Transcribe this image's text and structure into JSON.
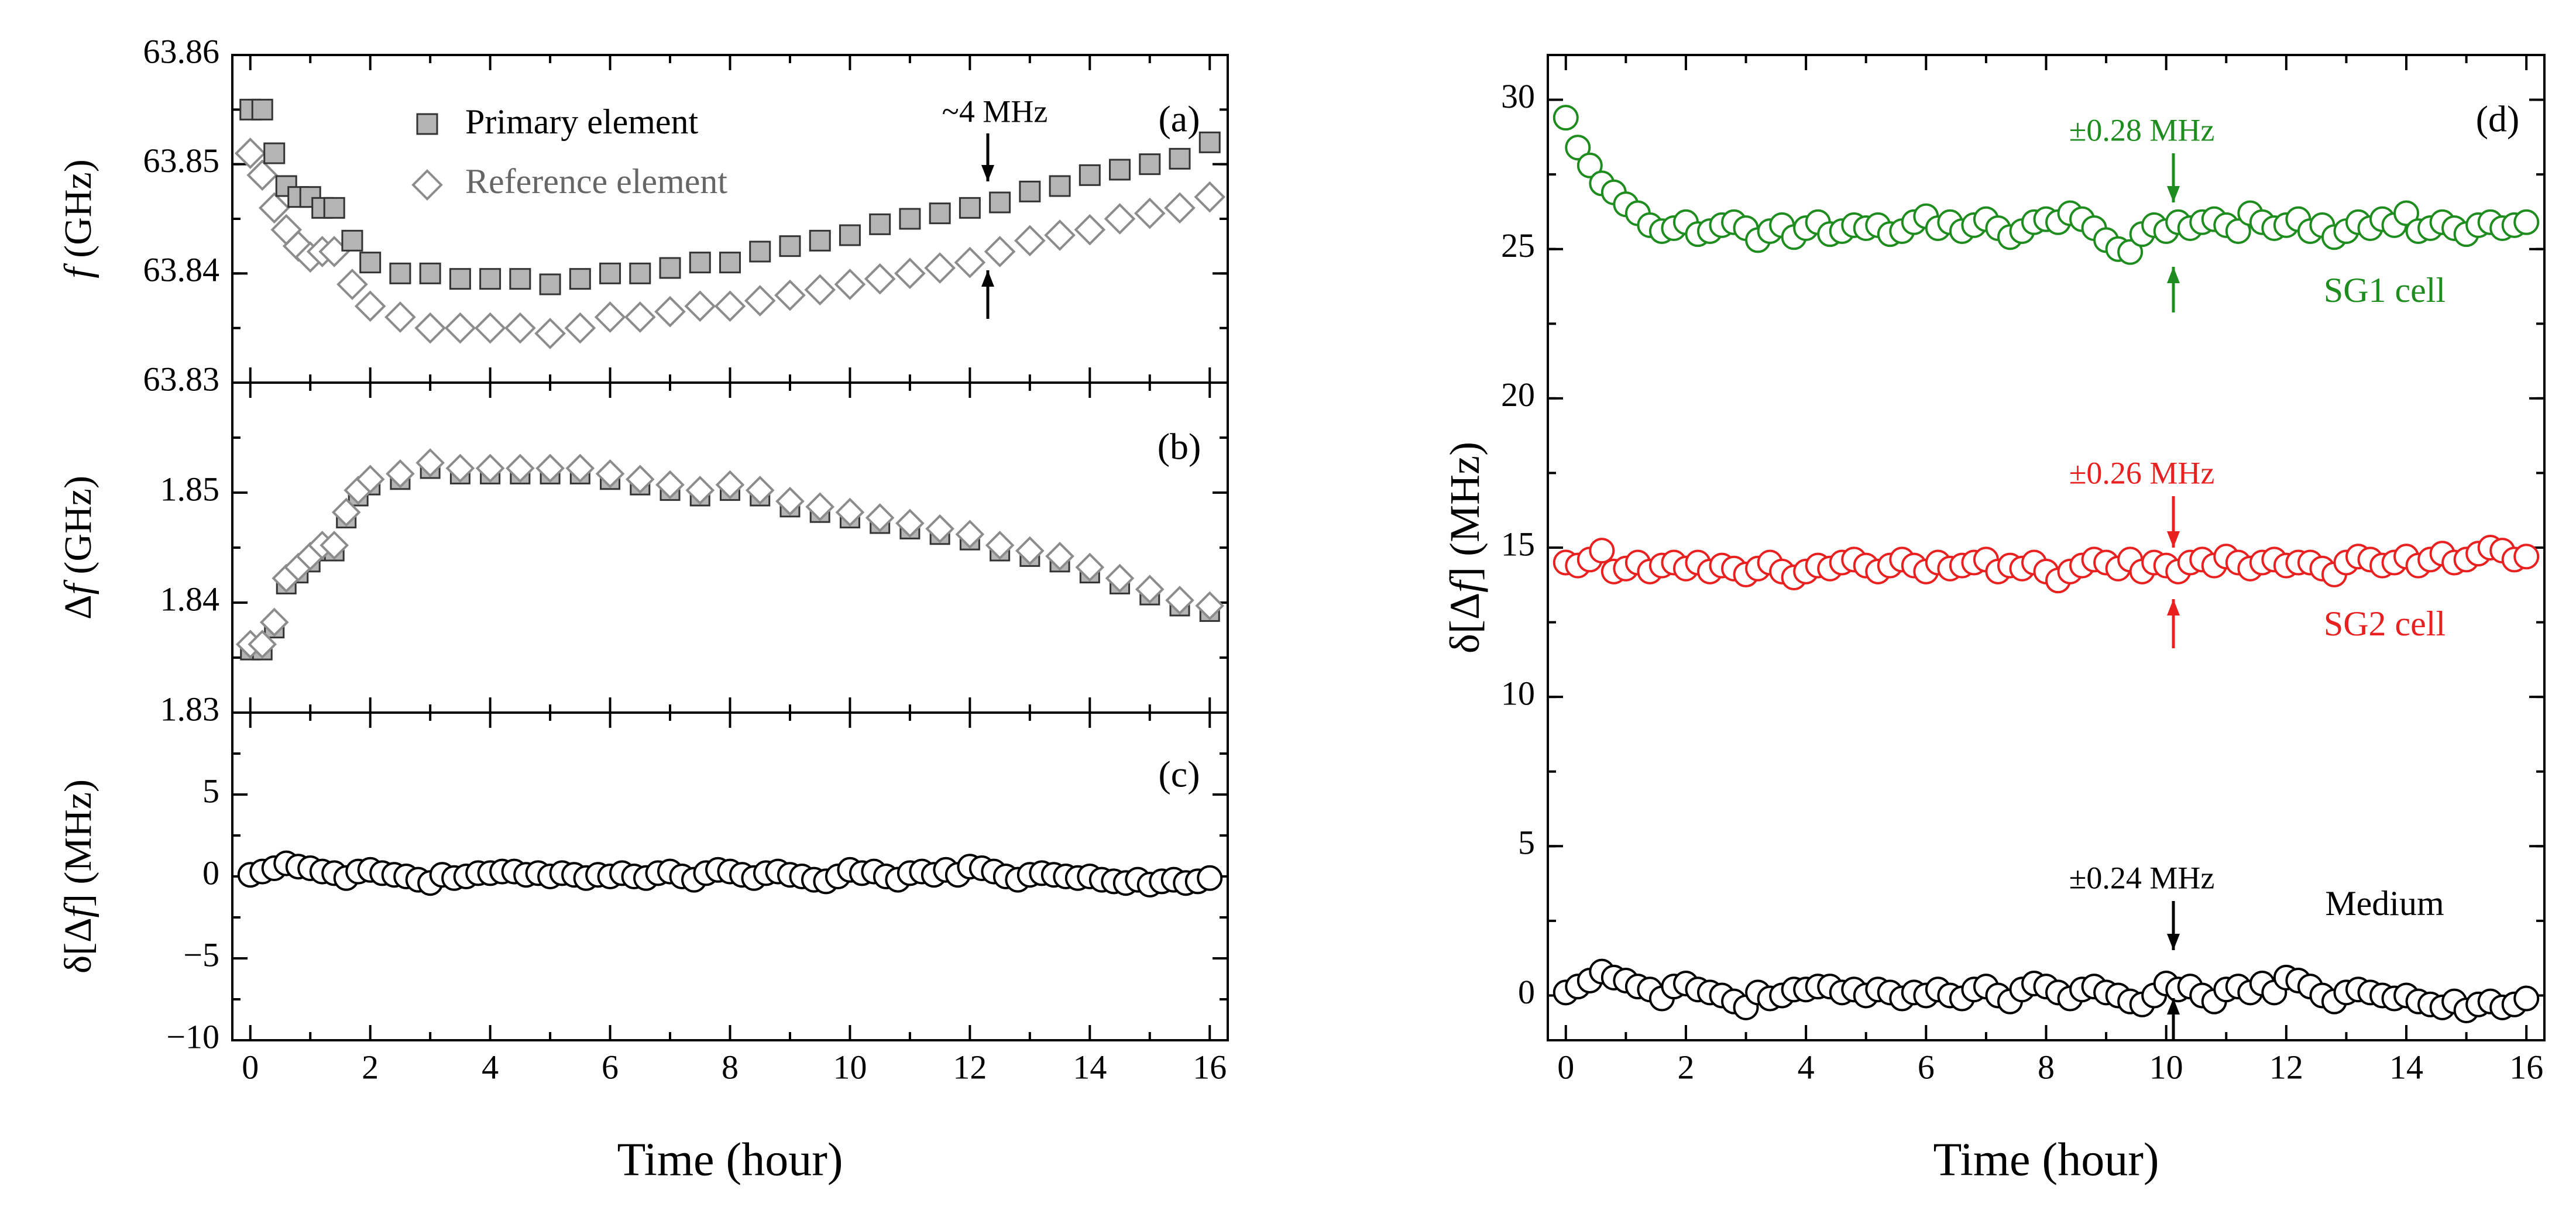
{
  "chart_data": [
    {
      "panel": "a",
      "type": "scatter",
      "panel_label": "(a)",
      "xlim": [
        -0.3,
        16.3
      ],
      "ylim": [
        63.83,
        63.86
      ],
      "yticks": [
        "63.83",
        "63.84",
        "63.85",
        "63.86"
      ],
      "ylabel_italic": "f",
      "ylabel_rest": " (GHz)",
      "legend": [
        "Primary element",
        "Reference element"
      ],
      "annotation": "~4 MHz",
      "colors": {
        "primary_fill": "#b4b4b4",
        "reference_stroke": "#8c8c8c"
      },
      "series": [
        {
          "name": "Primary element",
          "x": [
            0,
            0.2,
            0.4,
            0.6,
            0.8,
            1.0,
            1.2,
            1.4,
            1.7,
            2.0,
            2.5,
            3.0,
            3.5,
            4.0,
            4.5,
            5.0,
            5.5,
            6.0,
            6.5,
            7.0,
            7.5,
            8.0,
            8.5,
            9.0,
            9.5,
            10.0,
            10.5,
            11.0,
            11.5,
            12.0,
            12.5,
            13.0,
            13.5,
            14.0,
            14.5,
            15.0,
            15.5,
            16.0
          ],
          "values": [
            63.855,
            63.855,
            63.851,
            63.848,
            63.847,
            63.847,
            63.846,
            63.846,
            63.843,
            63.841,
            63.84,
            63.84,
            63.8395,
            63.8395,
            63.8395,
            63.839,
            63.8395,
            63.84,
            63.84,
            63.8405,
            63.841,
            63.841,
            63.842,
            63.8425,
            63.843,
            63.8435,
            63.8445,
            63.845,
            63.8455,
            63.846,
            63.8465,
            63.8475,
            63.848,
            63.849,
            63.8495,
            63.85,
            63.8505,
            63.852
          ]
        },
        {
          "name": "Reference element",
          "x": [
            0,
            0.2,
            0.4,
            0.6,
            0.8,
            1.0,
            1.2,
            1.4,
            1.7,
            2.0,
            2.5,
            3.0,
            3.5,
            4.0,
            4.5,
            5.0,
            5.5,
            6.0,
            6.5,
            7.0,
            7.5,
            8.0,
            8.5,
            9.0,
            9.5,
            10.0,
            10.5,
            11.0,
            11.5,
            12.0,
            12.5,
            13.0,
            13.5,
            14.0,
            14.5,
            15.0,
            15.5,
            16.0
          ],
          "values": [
            63.851,
            63.849,
            63.846,
            63.844,
            63.8425,
            63.8415,
            63.842,
            63.842,
            63.839,
            63.837,
            63.836,
            63.835,
            63.835,
            63.835,
            63.835,
            63.8345,
            63.835,
            63.836,
            63.836,
            63.8365,
            63.837,
            63.837,
            63.8375,
            63.838,
            63.8385,
            63.839,
            63.8395,
            63.84,
            63.8405,
            63.841,
            63.842,
            63.843,
            63.8435,
            63.844,
            63.845,
            63.8455,
            63.846,
            63.847
          ]
        }
      ]
    },
    {
      "panel": "b",
      "type": "scatter",
      "panel_label": "(b)",
      "xlim": [
        -0.3,
        16.3
      ],
      "ylim": [
        1.83,
        1.86
      ],
      "yticks": [
        "1.83",
        "1.84",
        "1.85"
      ],
      "ylabel_prefix": "Δ",
      "ylabel_italic": "f",
      "ylabel_rest": " (GHz)",
      "series": [
        {
          "name": "Δf",
          "x": [
            0,
            0.2,
            0.4,
            0.6,
            0.8,
            1.0,
            1.2,
            1.4,
            1.6,
            1.8,
            2.0,
            2.5,
            3.0,
            3.5,
            4.0,
            4.5,
            5.0,
            5.5,
            6.0,
            6.5,
            7.0,
            7.5,
            8.0,
            8.5,
            9.0,
            9.5,
            10.0,
            10.5,
            11.0,
            11.5,
            12.0,
            12.5,
            13.0,
            13.5,
            14.0,
            14.5,
            15.0,
            15.5,
            16.0
          ],
          "values": [
            1.836,
            1.836,
            1.838,
            1.842,
            1.843,
            1.844,
            1.845,
            1.845,
            1.848,
            1.85,
            1.851,
            1.8515,
            1.8525,
            1.852,
            1.852,
            1.852,
            1.852,
            1.852,
            1.8515,
            1.851,
            1.8505,
            1.85,
            1.8505,
            1.85,
            1.849,
            1.8485,
            1.848,
            1.8475,
            1.847,
            1.8465,
            1.846,
            1.845,
            1.8445,
            1.844,
            1.843,
            1.842,
            1.841,
            1.84,
            1.8395
          ]
        }
      ]
    },
    {
      "panel": "c",
      "type": "scatter",
      "panel_label": "(c)",
      "xlim": [
        -0.3,
        16.3
      ],
      "ylim": [
        -10,
        10
      ],
      "yticks": [
        "−10",
        "−5",
        "0",
        "5"
      ],
      "ylabel_prefix": "δ[Δ",
      "ylabel_italic": "f",
      "ylabel_rest": "] (MHz)",
      "xlabel": "Time (hour)",
      "xticks": [
        "0",
        "2",
        "4",
        "6",
        "8",
        "10",
        "12",
        "14",
        "16"
      ],
      "series": [
        {
          "name": "δ[Δf] medium",
          "x": [
            0,
            0.2,
            0.4,
            0.6,
            0.8,
            1.0,
            1.2,
            1.4,
            1.6,
            1.8,
            2.0,
            2.2,
            2.4,
            2.6,
            2.8,
            3.0,
            3.2,
            3.4,
            3.6,
            3.8,
            4.0,
            4.2,
            4.4,
            4.6,
            4.8,
            5.0,
            5.2,
            5.4,
            5.6,
            5.8,
            6.0,
            6.2,
            6.4,
            6.6,
            6.8,
            7.0,
            7.2,
            7.4,
            7.6,
            7.8,
            8.0,
            8.2,
            8.4,
            8.6,
            8.8,
            9.0,
            9.2,
            9.4,
            9.6,
            9.8,
            10.0,
            10.2,
            10.4,
            10.6,
            10.8,
            11.0,
            11.2,
            11.4,
            11.6,
            11.8,
            12.0,
            12.2,
            12.4,
            12.6,
            12.8,
            13.0,
            13.2,
            13.4,
            13.6,
            13.8,
            14.0,
            14.2,
            14.4,
            14.6,
            14.8,
            15.0,
            15.2,
            15.4,
            15.6,
            15.8,
            16.0
          ],
          "values": [
            0.1,
            0.3,
            0.5,
            0.8,
            0.6,
            0.5,
            0.3,
            0.2,
            -0.1,
            0.3,
            0.4,
            0.2,
            0.1,
            0.0,
            -0.2,
            -0.4,
            0.1,
            -0.1,
            0.0,
            0.2,
            0.2,
            0.3,
            0.3,
            0.1,
            0.2,
            0.0,
            0.2,
            0.1,
            -0.1,
            0.1,
            0.0,
            0.2,
            0.0,
            -0.1,
            0.2,
            0.3,
            0.0,
            -0.2,
            0.2,
            0.4,
            0.3,
            0.1,
            -0.1,
            0.2,
            0.3,
            0.1,
            0.0,
            -0.2,
            -0.3,
            0.0,
            0.4,
            0.2,
            0.3,
            0.0,
            -0.2,
            0.2,
            0.3,
            0.1,
            0.4,
            0.1,
            0.6,
            0.5,
            0.3,
            0.0,
            -0.2,
            0.1,
            0.2,
            0.1,
            0.0,
            -0.1,
            0.0,
            -0.2,
            -0.3,
            -0.4,
            -0.2,
            -0.5,
            -0.3,
            -0.2,
            -0.4,
            -0.3,
            -0.1
          ]
        }
      ]
    },
    {
      "panel": "d",
      "type": "scatter",
      "panel_label": "(d)",
      "xlim": [
        -0.3,
        16.3
      ],
      "ylim": [
        -1.5,
        31.5
      ],
      "yticks": [
        "0",
        "5",
        "10",
        "15",
        "20",
        "25",
        "30"
      ],
      "xticks": [
        "0",
        "2",
        "4",
        "6",
        "8",
        "10",
        "12",
        "14",
        "16"
      ],
      "xlabel": "Time (hour)",
      "ylabel_prefix": "δ[Δ",
      "ylabel_italic": "f",
      "ylabel_rest": "] (MHz)",
      "annotations": {
        "sg1_spread": "±0.28 MHz",
        "sg2_spread": "±0.26 MHz",
        "medium_spread": "±0.24 MHz",
        "sg1_label": "SG1 cell",
        "sg2_label": "SG2 cell",
        "medium_label": "Medium"
      },
      "colors": {
        "SG1 cell": "#1e8c1e",
        "SG2 cell": "#e82020",
        "Medium": "#000000"
      },
      "series": [
        {
          "name": "SG1 cell",
          "x": [
            0,
            0.2,
            0.4,
            0.6,
            0.8,
            1.0,
            1.2,
            1.4,
            1.6,
            1.8,
            2.0,
            2.2,
            2.4,
            2.6,
            2.8,
            3.0,
            3.2,
            3.4,
            3.6,
            3.8,
            4.0,
            4.2,
            4.4,
            4.6,
            4.8,
            5.0,
            5.2,
            5.4,
            5.6,
            5.8,
            6.0,
            6.2,
            6.4,
            6.6,
            6.8,
            7.0,
            7.2,
            7.4,
            7.6,
            7.8,
            8.0,
            8.2,
            8.4,
            8.6,
            8.8,
            9.0,
            9.2,
            9.4,
            9.6,
            9.8,
            10.0,
            10.2,
            10.4,
            10.6,
            10.8,
            11.0,
            11.2,
            11.4,
            11.6,
            11.8,
            12.0,
            12.2,
            12.4,
            12.6,
            12.8,
            13.0,
            13.2,
            13.4,
            13.6,
            13.8,
            14.0,
            14.2,
            14.4,
            14.6,
            14.8,
            15.0,
            15.2,
            15.4,
            15.6,
            15.8,
            16.0
          ],
          "values": [
            29.4,
            28.4,
            27.8,
            27.2,
            26.9,
            26.5,
            26.2,
            25.8,
            25.6,
            25.7,
            25.9,
            25.5,
            25.6,
            25.8,
            25.9,
            25.7,
            25.3,
            25.6,
            25.8,
            25.4,
            25.7,
            25.9,
            25.5,
            25.6,
            25.8,
            25.7,
            25.8,
            25.5,
            25.6,
            25.9,
            26.1,
            25.7,
            25.9,
            25.6,
            25.8,
            26.0,
            25.7,
            25.4,
            25.6,
            25.9,
            26.0,
            25.9,
            26.2,
            26.0,
            25.7,
            25.3,
            25.0,
            24.9,
            25.5,
            25.8,
            25.6,
            25.9,
            25.7,
            25.9,
            26.0,
            25.8,
            25.6,
            26.2,
            25.9,
            25.7,
            25.8,
            26.0,
            25.6,
            25.8,
            25.4,
            25.6,
            25.9,
            25.7,
            26.0,
            25.8,
            26.2,
            25.6,
            25.7,
            25.9,
            25.7,
            25.5,
            25.8,
            25.9,
            25.7,
            25.8,
            25.9
          ]
        },
        {
          "name": "SG2 cell",
          "x": [
            0,
            0.2,
            0.4,
            0.6,
            0.8,
            1.0,
            1.2,
            1.4,
            1.6,
            1.8,
            2.0,
            2.2,
            2.4,
            2.6,
            2.8,
            3.0,
            3.2,
            3.4,
            3.6,
            3.8,
            4.0,
            4.2,
            4.4,
            4.6,
            4.8,
            5.0,
            5.2,
            5.4,
            5.6,
            5.8,
            6.0,
            6.2,
            6.4,
            6.6,
            6.8,
            7.0,
            7.2,
            7.4,
            7.6,
            7.8,
            8.0,
            8.2,
            8.4,
            8.6,
            8.8,
            9.0,
            9.2,
            9.4,
            9.6,
            9.8,
            10.0,
            10.2,
            10.4,
            10.6,
            10.8,
            11.0,
            11.2,
            11.4,
            11.6,
            11.8,
            12.0,
            12.2,
            12.4,
            12.6,
            12.8,
            13.0,
            13.2,
            13.4,
            13.6,
            13.8,
            14.0,
            14.2,
            14.4,
            14.6,
            14.8,
            15.0,
            15.2,
            15.4,
            15.6,
            15.8,
            16.0
          ],
          "values": [
            14.5,
            14.4,
            14.6,
            14.9,
            14.2,
            14.3,
            14.5,
            14.2,
            14.4,
            14.5,
            14.3,
            14.5,
            14.2,
            14.4,
            14.3,
            14.1,
            14.3,
            14.5,
            14.2,
            14.0,
            14.2,
            14.4,
            14.3,
            14.5,
            14.6,
            14.4,
            14.2,
            14.4,
            14.6,
            14.4,
            14.2,
            14.5,
            14.3,
            14.4,
            14.5,
            14.6,
            14.2,
            14.4,
            14.3,
            14.5,
            14.2,
            13.9,
            14.2,
            14.4,
            14.6,
            14.5,
            14.3,
            14.6,
            14.2,
            14.5,
            14.4,
            14.2,
            14.5,
            14.6,
            14.4,
            14.7,
            14.5,
            14.3,
            14.5,
            14.6,
            14.4,
            14.5,
            14.5,
            14.3,
            14.1,
            14.5,
            14.7,
            14.6,
            14.4,
            14.5,
            14.7,
            14.4,
            14.6,
            14.8,
            14.5,
            14.6,
            14.8,
            15.0,
            14.9,
            14.6,
            14.7
          ]
        },
        {
          "name": "Medium",
          "x": [
            0,
            0.2,
            0.4,
            0.6,
            0.8,
            1.0,
            1.2,
            1.4,
            1.6,
            1.8,
            2.0,
            2.2,
            2.4,
            2.6,
            2.8,
            3.0,
            3.2,
            3.4,
            3.6,
            3.8,
            4.0,
            4.2,
            4.4,
            4.6,
            4.8,
            5.0,
            5.2,
            5.4,
            5.6,
            5.8,
            6.0,
            6.2,
            6.4,
            6.6,
            6.8,
            7.0,
            7.2,
            7.4,
            7.6,
            7.8,
            8.0,
            8.2,
            8.4,
            8.6,
            8.8,
            9.0,
            9.2,
            9.4,
            9.6,
            9.8,
            10.0,
            10.2,
            10.4,
            10.6,
            10.8,
            11.0,
            11.2,
            11.4,
            11.6,
            11.8,
            12.0,
            12.2,
            12.4,
            12.6,
            12.8,
            13.0,
            13.2,
            13.4,
            13.6,
            13.8,
            14.0,
            14.2,
            14.4,
            14.6,
            14.8,
            15.0,
            15.2,
            15.4,
            15.6,
            15.8,
            16.0
          ],
          "values": [
            0.1,
            0.3,
            0.5,
            0.8,
            0.6,
            0.5,
            0.3,
            0.2,
            -0.1,
            0.3,
            0.4,
            0.2,
            0.1,
            0.0,
            -0.2,
            -0.4,
            0.1,
            -0.1,
            0.0,
            0.2,
            0.2,
            0.3,
            0.3,
            0.1,
            0.2,
            0.0,
            0.2,
            0.1,
            -0.1,
            0.1,
            0.0,
            0.2,
            0.0,
            -0.1,
            0.2,
            0.3,
            0.0,
            -0.2,
            0.2,
            0.4,
            0.3,
            0.1,
            -0.1,
            0.2,
            0.3,
            0.1,
            0.0,
            -0.2,
            -0.3,
            0.0,
            0.4,
            0.2,
            0.3,
            0.0,
            -0.2,
            0.2,
            0.3,
            0.1,
            0.4,
            0.1,
            0.6,
            0.5,
            0.3,
            0.0,
            -0.2,
            0.1,
            0.2,
            0.1,
            0.0,
            -0.1,
            0.0,
            -0.2,
            -0.3,
            -0.4,
            -0.2,
            -0.5,
            -0.3,
            -0.2,
            -0.4,
            -0.3,
            -0.1
          ]
        }
      ]
    }
  ]
}
